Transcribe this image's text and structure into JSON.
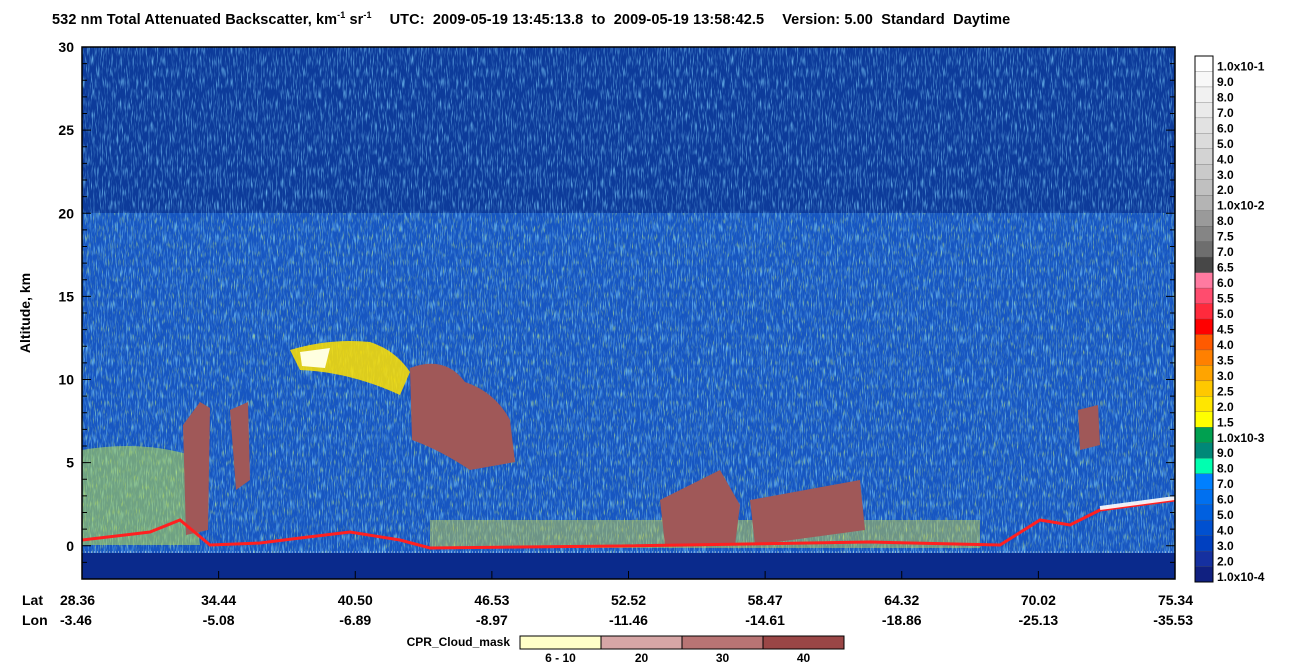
{
  "title": {
    "product": "532 nm Total Attenuated Backscatter, km",
    "product_sup1": "-1",
    "product_mid": " sr",
    "product_sup2": "-1",
    "utc_label": "UTC:",
    "utc_start": "2009-05-19 13:45:13.8",
    "utc_to": "to",
    "utc_end": "2009-05-19 13:58:42.5",
    "version": "Version: 5.00",
    "mode": "Standard",
    "daylight": "Daytime"
  },
  "colors": {
    "background": "#0d3b9a",
    "deep_blue": "#0a2a8c",
    "mid_blue": "#1f6fe0",
    "light_blue": "#4aa0f0",
    "cyan_green": "#19b6a8",
    "yellow": "#ffff00",
    "orange": "#ff8000",
    "red": "#ff0000",
    "cloud_mask": "#a05858",
    "white_cloud": "#ffffe0"
  },
  "chart_data": {
    "type": "heatmap",
    "ylabel": "Altitude, km",
    "ylim": [
      -2,
      30
    ],
    "y_ticks": [
      "0",
      "5",
      "10",
      "15",
      "20",
      "25",
      "30"
    ],
    "y_tick_values": [
      0,
      5,
      10,
      15,
      20,
      25,
      30
    ],
    "x_axis": {
      "lat_label": "Lat",
      "lon_label": "Lon",
      "lat": [
        "28.36",
        "34.44",
        "40.50",
        "46.53",
        "52.52",
        "58.47",
        "64.32",
        "70.02",
        "75.34"
      ],
      "lon": [
        "-3.46",
        "-5.08",
        "-6.89",
        "-8.97",
        "-11.46",
        "-14.61",
        "-18.86",
        "-25.13",
        "-35.53"
      ]
    },
    "colorbar": {
      "labels": [
        "1.0x10-1",
        "9.0",
        "8.0",
        "7.0",
        "6.0",
        "5.0",
        "4.0",
        "3.0",
        "2.0",
        "1.0x10-2",
        "8.0",
        "7.5",
        "7.0",
        "6.5",
        "6.0",
        "5.5",
        "5.0",
        "4.5",
        "4.0",
        "3.5",
        "3.0",
        "2.5",
        "2.0",
        "1.5",
        "1.0x10-3",
        "9.0",
        "8.0",
        "7.0",
        "6.0",
        "5.0",
        "4.0",
        "3.0",
        "2.0",
        "1.0x10-4"
      ],
      "colors": [
        "#ffffff",
        "#f8f8f8",
        "#f1f1f1",
        "#eaeaea",
        "#e2e2e2",
        "#dbdbdb",
        "#d3d3d3",
        "#cacaca",
        "#c0c0c0",
        "#b4b4b4",
        "#9a9a9a",
        "#858585",
        "#6e6e6e",
        "#474747",
        "#ff7aa0",
        "#ff4c6e",
        "#ff2a3c",
        "#ff0000",
        "#ff5a00",
        "#ff8000",
        "#ffa400",
        "#ffc800",
        "#ffe600",
        "#ffff00",
        "#00a050",
        "#008878",
        "#00ffb0",
        "#0080ff",
        "#0070f0",
        "#0060e0",
        "#0050d0",
        "#0040c0",
        "#1530a0",
        "#102080"
      ]
    },
    "cloud_mask_legend": {
      "label": "CPR_Cloud_mask",
      "categories": [
        "6 - 10",
        "20",
        "30",
        "40"
      ],
      "colors": [
        "#ffffc8",
        "#d6a6a6",
        "#b87474",
        "#9a4646"
      ]
    }
  }
}
